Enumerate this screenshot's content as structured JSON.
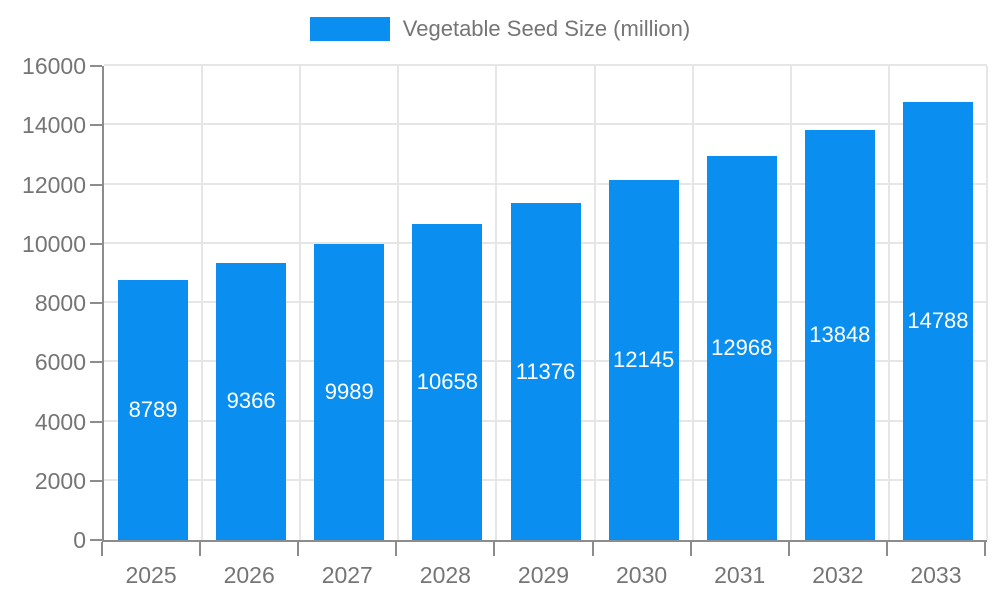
{
  "chart_data": {
    "type": "bar",
    "title": "Vegetable Seed Size (million)",
    "legend": "Vegetable Seed Size (million)",
    "legend_position": "top",
    "categories": [
      "2025",
      "2026",
      "2027",
      "2028",
      "2029",
      "2030",
      "2031",
      "2032",
      "2033"
    ],
    "values": [
      8789,
      9366,
      9989,
      10658,
      11376,
      12145,
      12968,
      13848,
      14788
    ],
    "xlabel": "",
    "ylabel": "",
    "ylim": [
      0,
      16000
    ],
    "ytick_step": 2000,
    "yticks": [
      0,
      2000,
      4000,
      6000,
      8000,
      10000,
      12000,
      14000,
      16000
    ],
    "grid": true,
    "colors": {
      "bar": "#0a8ff0",
      "bar_value_label": "#ffffff",
      "axis_line": "#8c8c8c",
      "gridline": "#e6e6e6",
      "tick_text": "#757575",
      "legend_text": "#757575",
      "background": "#ffffff"
    }
  }
}
